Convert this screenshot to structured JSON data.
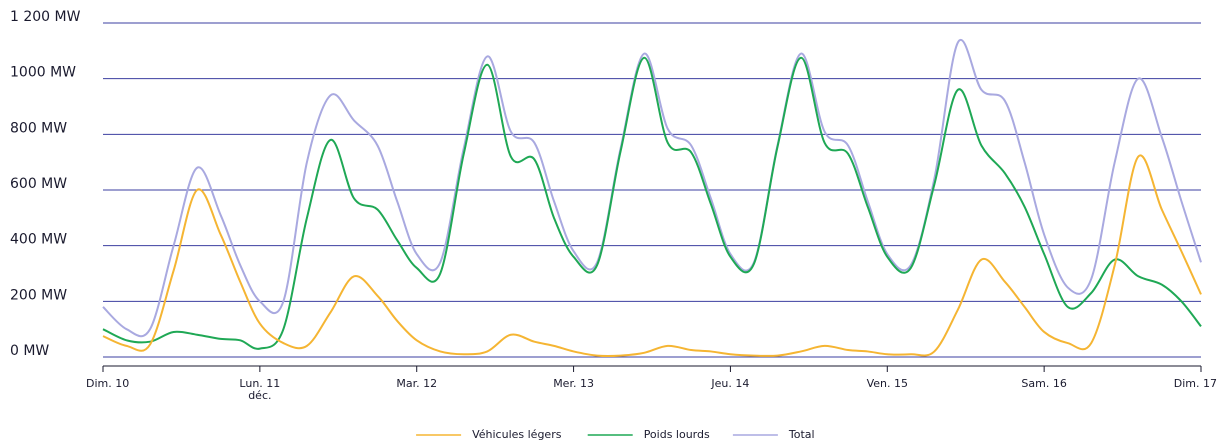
{
  "chart_data": {
    "type": "line",
    "x": [
      0,
      0.15,
      0.3,
      0.45,
      0.6,
      0.75,
      0.875,
      1,
      1.15,
      1.3,
      1.45,
      1.6,
      1.75,
      1.875,
      2,
      2.15,
      2.3,
      2.45,
      2.6,
      2.75,
      2.875,
      3,
      3.15,
      3.3,
      3.45,
      3.6,
      3.75,
      3.875,
      4,
      4.15,
      4.3,
      4.45,
      4.6,
      4.75,
      4.875,
      5,
      5.15,
      5.3,
      5.45,
      5.6,
      5.75,
      5.875,
      6,
      6.15,
      6.3,
      6.45,
      6.6,
      6.75,
      6.875,
      7
    ],
    "series": [
      {
        "name": "Véhicules légers",
        "color": "#f5b533",
        "values": [
          75,
          40,
          45,
          310,
          600,
          440,
          270,
          120,
          50,
          40,
          160,
          290,
          220,
          130,
          60,
          20,
          10,
          20,
          80,
          55,
          40,
          20,
          5,
          5,
          15,
          40,
          25,
          20,
          10,
          5,
          5,
          20,
          40,
          25,
          20,
          10,
          10,
          20,
          170,
          350,
          270,
          180,
          90,
          50,
          50,
          330,
          720,
          530,
          380,
          225
        ]
      },
      {
        "name": "Poids lourds",
        "color": "#1fa855",
        "values": [
          100,
          60,
          55,
          90,
          80,
          65,
          60,
          30,
          100,
          500,
          780,
          570,
          530,
          420,
          320,
          300,
          730,
          1050,
          720,
          710,
          500,
          360,
          330,
          740,
          1075,
          770,
          735,
          550,
          360,
          335,
          755,
          1075,
          770,
          730,
          540,
          360,
          320,
          620,
          960,
          760,
          660,
          540,
          370,
          180,
          230,
          350,
          290,
          260,
          200,
          110
        ]
      },
      {
        "name": "Total",
        "color": "#a9a9e0",
        "values": [
          180,
          100,
          100,
          400,
          680,
          510,
          330,
          200,
          200,
          700,
          940,
          850,
          760,
          560,
          370,
          340,
          750,
          1080,
          810,
          770,
          560,
          380,
          340,
          750,
          1090,
          820,
          760,
          570,
          370,
          340,
          760,
          1090,
          810,
          760,
          560,
          370,
          330,
          640,
          1130,
          960,
          920,
          700,
          440,
          250,
          280,
          700,
          1000,
          790,
          560,
          340
        ]
      }
    ],
    "xlim": [
      0,
      7
    ],
    "xticks": [
      {
        "value": 0,
        "label": "Dim. 10"
      },
      {
        "value": 1,
        "label": "Lun. 11"
      },
      {
        "value": 2,
        "label": "Mar. 12"
      },
      {
        "value": 3,
        "label": "Mer. 13"
      },
      {
        "value": 4,
        "label": "Jeu. 14"
      },
      {
        "value": 5,
        "label": "Ven. 15"
      },
      {
        "value": 6,
        "label": "Sam. 16"
      },
      {
        "value": 7,
        "label": "Dim. 17"
      }
    ],
    "x_month_label": "déc.",
    "ylim": [
      0,
      1200
    ],
    "yticks": [
      {
        "value": 0,
        "label": "0 MW"
      },
      {
        "value": 200,
        "label": "200 MW"
      },
      {
        "value": 400,
        "label": "400 MW"
      },
      {
        "value": 600,
        "label": "600 MW"
      },
      {
        "value": 800,
        "label": "800 MW"
      },
      {
        "value": 1000,
        "label": "1000 MW"
      },
      {
        "value": 1200,
        "label": "1 200 MW"
      }
    ],
    "grid": true,
    "grid_color": "#3b3fa0",
    "legend": "bottom"
  }
}
